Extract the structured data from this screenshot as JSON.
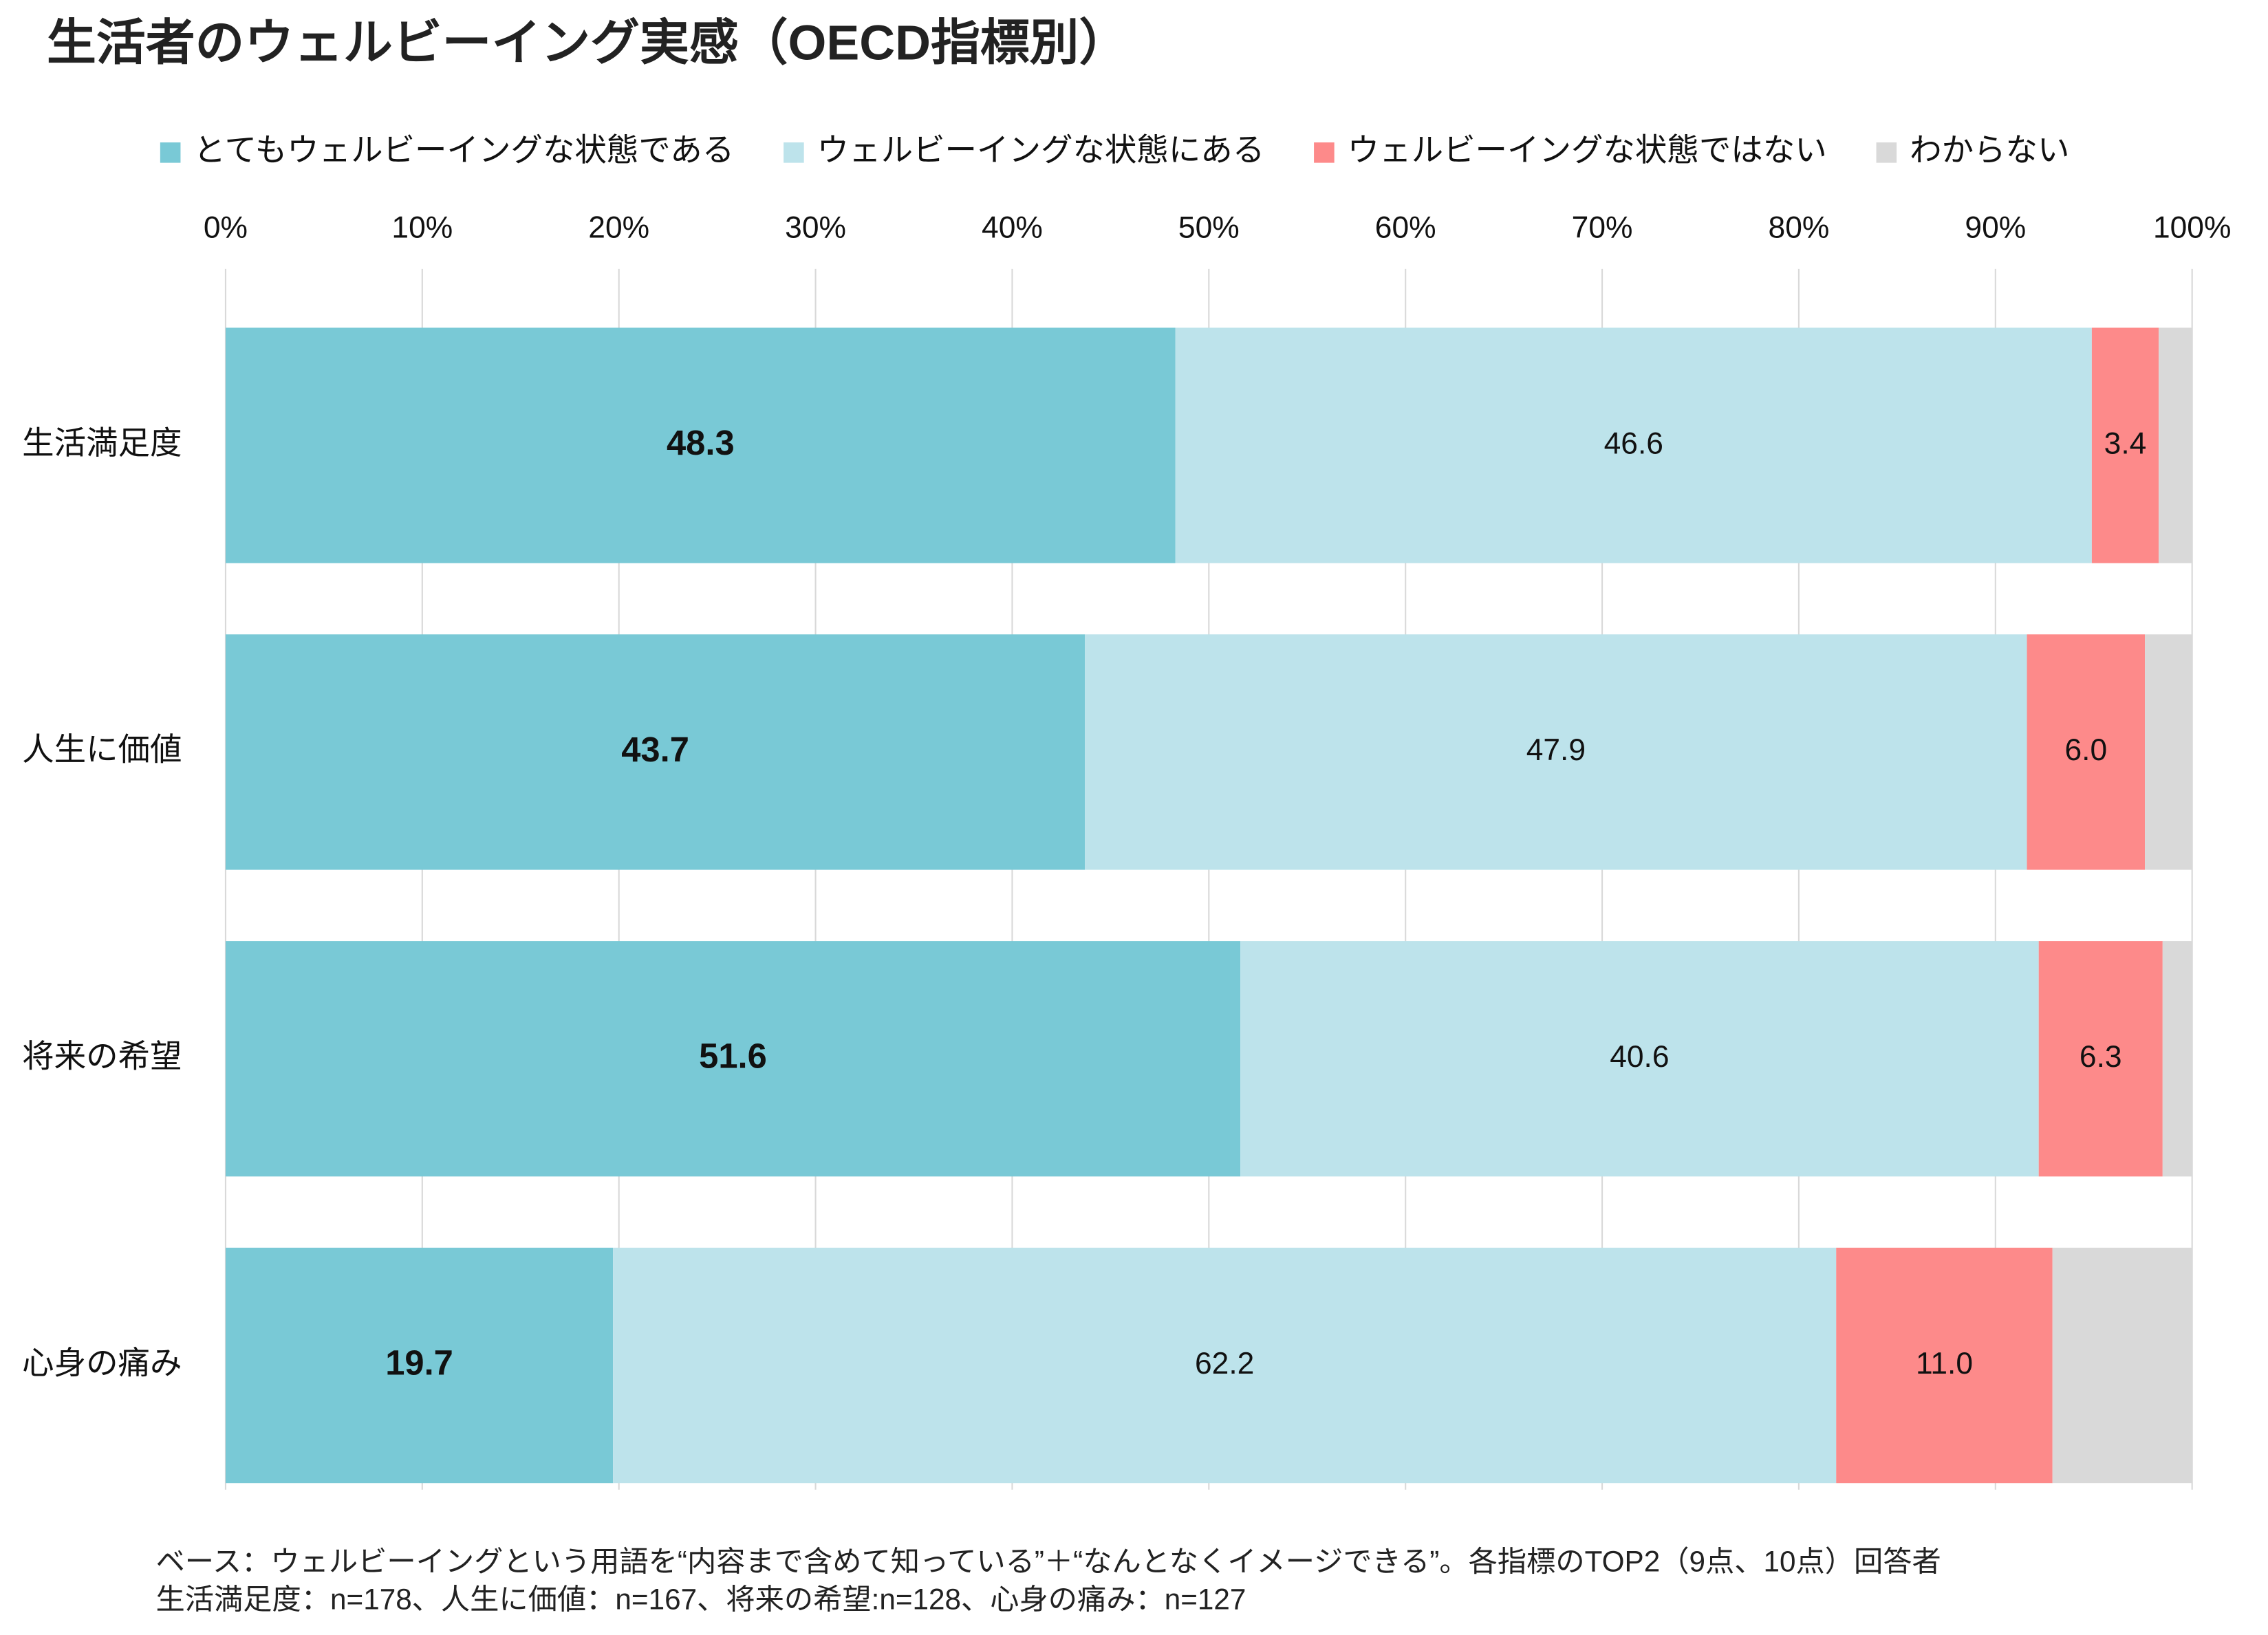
{
  "chart_data": {
    "type": "stacked-bar-horizontal",
    "title": "生活者のウェルビーイング実感（OECD指標別）",
    "categories": [
      "生活満足度",
      "人生に価値",
      "将来の希望",
      "心身の痛み"
    ],
    "series": [
      {
        "name": "とてもウェルビーイングな状態である",
        "color": "#79c9d6",
        "values": [
          48.3,
          43.7,
          51.6,
          19.7
        ]
      },
      {
        "name": "ウェルビーイングな状態にある",
        "color": "#bde3eb",
        "values": [
          46.6,
          47.9,
          40.6,
          62.2
        ]
      },
      {
        "name": "ウェルビーイングな状態ではない",
        "color": "#fd8a8a",
        "values": [
          3.4,
          6.0,
          6.3,
          11.0
        ],
        "value_labels": [
          "3.4",
          "6.0",
          "6.3",
          "11.0"
        ]
      },
      {
        "name": "わからない",
        "color": "#d9d9d9",
        "values": [
          1.7,
          2.4,
          1.5,
          7.1
        ]
      }
    ],
    "xlim": [
      0,
      100
    ],
    "xticks": [
      {
        "value": 0,
        "label": "0%"
      },
      {
        "value": 10,
        "label": "10%"
      },
      {
        "value": 20,
        "label": "20%"
      },
      {
        "value": 30,
        "label": "30%"
      },
      {
        "value": 40,
        "label": "40%"
      },
      {
        "value": 50,
        "label": "50%"
      },
      {
        "value": 60,
        "label": "60%"
      },
      {
        "value": 70,
        "label": "70%"
      },
      {
        "value": 80,
        "label": "80%"
      },
      {
        "value": 90,
        "label": "90%"
      },
      {
        "value": 100,
        "label": "100%"
      }
    ],
    "grid": true,
    "notes": [
      "ベース：ウェルビーイングという用語を“内容まで含めて知っている”＋“なんとなくイメージできる”。各指標のTOP2（9点、10点）回答者",
      "生活満足度：n=178、人生に価値：n=167、将来の希望:n=128、心身の痛み：n=127"
    ]
  }
}
